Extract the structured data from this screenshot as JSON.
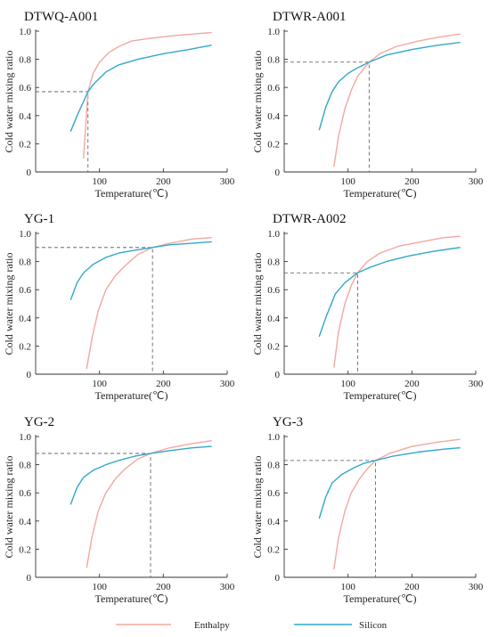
{
  "legend": {
    "enthalpy_label": "Enthalpy",
    "silicon_label": "Silicon",
    "enthalpy_color": "#f2a8a0",
    "silicon_color": "#2fa8cc"
  },
  "chart_data": [
    {
      "type": "line",
      "title": "DTWQ-A001",
      "xlabel": "Temperature(℃)",
      "ylabel": "Cold water mixing ratio",
      "xlim": [
        0,
        300
      ],
      "ylim": [
        0,
        1.0
      ],
      "xticks": [
        "100",
        "200",
        "300"
      ],
      "yticks": [
        "0",
        "0.2",
        "0.4",
        "0.6",
        "0.8",
        "1.0"
      ],
      "grid": false,
      "intersection": [
        82,
        0.57
      ],
      "series": [
        {
          "name": "Enthalpy",
          "x": [
            75,
            82,
            90,
            100,
            115,
            130,
            150,
            180,
            220,
            275
          ],
          "y": [
            0.1,
            0.57,
            0.7,
            0.78,
            0.85,
            0.89,
            0.93,
            0.95,
            0.97,
            0.99
          ]
        },
        {
          "name": "Silicon",
          "x": [
            55,
            65,
            75,
            82,
            90,
            110,
            130,
            160,
            200,
            240,
            275
          ],
          "y": [
            0.29,
            0.4,
            0.5,
            0.57,
            0.62,
            0.71,
            0.76,
            0.8,
            0.84,
            0.87,
            0.9
          ]
        }
      ]
    },
    {
      "type": "line",
      "title": "DTWR-A001",
      "xlabel": "Temperature(℃)",
      "ylabel": "Cold water mixing ratio",
      "xlim": [
        0,
        300
      ],
      "ylim": [
        0,
        1.0
      ],
      "xticks": [
        "100",
        "200",
        "300"
      ],
      "yticks": [
        "0",
        "0.2",
        "0.4",
        "0.6",
        "0.8",
        "1.0"
      ],
      "grid": false,
      "intersection": [
        133,
        0.78
      ],
      "series": [
        {
          "name": "Enthalpy",
          "x": [
            78,
            85,
            95,
            105,
            115,
            133,
            150,
            175,
            210,
            245,
            275
          ],
          "y": [
            0.04,
            0.25,
            0.45,
            0.58,
            0.68,
            0.78,
            0.84,
            0.89,
            0.93,
            0.96,
            0.98
          ]
        },
        {
          "name": "Silicon",
          "x": [
            55,
            65,
            75,
            85,
            100,
            115,
            133,
            160,
            200,
            240,
            275
          ],
          "y": [
            0.3,
            0.46,
            0.57,
            0.64,
            0.7,
            0.74,
            0.78,
            0.83,
            0.87,
            0.9,
            0.92
          ]
        }
      ]
    },
    {
      "type": "line",
      "title": "YG-1",
      "xlabel": "Temperature(℃)",
      "ylabel": "Cold water mixing ratio",
      "xlim": [
        0,
        300
      ],
      "ylim": [
        0,
        1.0
      ],
      "xticks": [
        "100",
        "200",
        "300"
      ],
      "yticks": [
        "0",
        "0.2",
        "0.4",
        "0.6",
        "0.8",
        "1.0"
      ],
      "grid": false,
      "intersection": [
        183,
        0.9
      ],
      "series": [
        {
          "name": "Enthalpy",
          "x": [
            80,
            88,
            98,
            110,
            125,
            140,
            160,
            183,
            210,
            245,
            275
          ],
          "y": [
            0.04,
            0.25,
            0.45,
            0.6,
            0.7,
            0.77,
            0.85,
            0.9,
            0.93,
            0.96,
            0.97
          ]
        },
        {
          "name": "Silicon",
          "x": [
            55,
            65,
            75,
            90,
            110,
            130,
            155,
            183,
            210,
            245,
            275
          ],
          "y": [
            0.53,
            0.65,
            0.72,
            0.78,
            0.83,
            0.86,
            0.88,
            0.9,
            0.92,
            0.93,
            0.94
          ]
        }
      ]
    },
    {
      "type": "line",
      "title": "DTWR-A002",
      "xlabel": "Temperature(℃)",
      "ylabel": "Cold water mixing ratio",
      "xlim": [
        0,
        300
      ],
      "ylim": [
        0,
        1.0
      ],
      "xticks": [
        "100",
        "200",
        "300"
      ],
      "yticks": [
        "0",
        "0.2",
        "0.4",
        "0.6",
        "0.8",
        "1.0"
      ],
      "grid": false,
      "intersection": [
        115,
        0.72
      ],
      "series": [
        {
          "name": "Enthalpy",
          "x": [
            78,
            85,
            95,
            105,
            115,
            130,
            150,
            180,
            215,
            250,
            275
          ],
          "y": [
            0.05,
            0.3,
            0.5,
            0.63,
            0.72,
            0.8,
            0.86,
            0.91,
            0.94,
            0.97,
            0.98
          ]
        },
        {
          "name": "Silicon",
          "x": [
            55,
            65,
            80,
            95,
            115,
            135,
            160,
            195,
            230,
            260,
            275
          ],
          "y": [
            0.27,
            0.4,
            0.57,
            0.65,
            0.72,
            0.76,
            0.8,
            0.84,
            0.87,
            0.89,
            0.9
          ]
        }
      ]
    },
    {
      "type": "line",
      "title": "YG-2",
      "xlabel": "Temperature(℃)",
      "ylabel": "Cold water mixing ratio",
      "xlim": [
        0,
        300
      ],
      "ylim": [
        0,
        1.0
      ],
      "xticks": [
        "100",
        "200",
        "300"
      ],
      "yticks": [
        "0",
        "0.2",
        "0.4",
        "0.6",
        "0.8",
        "1.0"
      ],
      "grid": false,
      "intersection": [
        180,
        0.88
      ],
      "series": [
        {
          "name": "Enthalpy",
          "x": [
            80,
            88,
            98,
            110,
            125,
            140,
            160,
            180,
            210,
            245,
            275
          ],
          "y": [
            0.07,
            0.28,
            0.47,
            0.6,
            0.7,
            0.77,
            0.84,
            0.88,
            0.92,
            0.95,
            0.97
          ]
        },
        {
          "name": "Silicon",
          "x": [
            55,
            65,
            75,
            90,
            110,
            130,
            155,
            180,
            210,
            245,
            275
          ],
          "y": [
            0.52,
            0.64,
            0.71,
            0.76,
            0.8,
            0.83,
            0.86,
            0.88,
            0.9,
            0.92,
            0.93
          ]
        }
      ]
    },
    {
      "type": "line",
      "title": "YG-3",
      "xlabel": "Temperature(℃)",
      "ylabel": "Cold water mixing ratio",
      "xlim": [
        0,
        300
      ],
      "ylim": [
        0,
        1.0
      ],
      "xticks": [
        "100",
        "200",
        "300"
      ],
      "yticks": [
        "0",
        "0.2",
        "0.4",
        "0.6",
        "0.8",
        "1.0"
      ],
      "grid": false,
      "intersection": [
        143,
        0.83
      ],
      "series": [
        {
          "name": "Enthalpy",
          "x": [
            78,
            85,
            95,
            105,
            118,
            130,
            143,
            165,
            200,
            240,
            275
          ],
          "y": [
            0.06,
            0.28,
            0.47,
            0.6,
            0.7,
            0.77,
            0.83,
            0.88,
            0.93,
            0.96,
            0.98
          ]
        },
        {
          "name": "Silicon",
          "x": [
            55,
            65,
            75,
            90,
            110,
            125,
            143,
            170,
            210,
            250,
            275
          ],
          "y": [
            0.42,
            0.57,
            0.67,
            0.73,
            0.78,
            0.81,
            0.83,
            0.86,
            0.89,
            0.91,
            0.92
          ]
        }
      ]
    }
  ]
}
